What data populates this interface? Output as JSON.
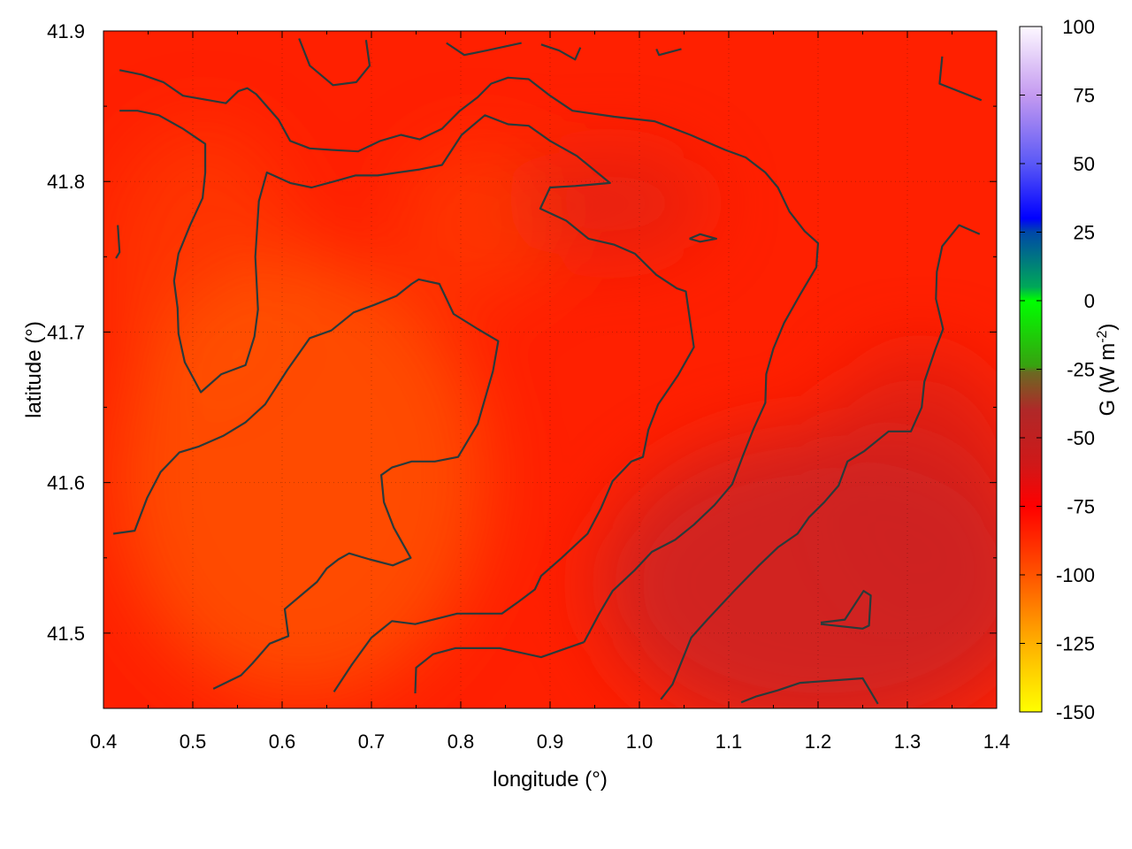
{
  "chart_data": {
    "type": "heatmap",
    "title": "",
    "xlabel": "longitude (°)",
    "ylabel": "latitude (°)",
    "xlim": [
      0.4,
      1.4
    ],
    "ylim": [
      41.45,
      41.9
    ],
    "xticks": [
      "0.4",
      "0.5",
      "0.6",
      "0.7",
      "0.8",
      "0.9",
      "1.0",
      "1.1",
      "1.2",
      "1.3",
      "1.4"
    ],
    "yticks": [
      "41.5",
      "41.6",
      "41.7",
      "41.8",
      "41.9"
    ],
    "grid": true,
    "colorbar": {
      "label": "G (W m",
      "label_sup": "-2",
      "label_close": ")",
      "range": [
        -150,
        100
      ],
      "ticks": [
        "100",
        "75",
        "50",
        "25",
        "0",
        "-25",
        "-50",
        "-75",
        "-100",
        "-125",
        "-150"
      ],
      "stops": [
        {
          "value": 100,
          "color": "#fdf8ff"
        },
        {
          "value": 75,
          "color": "#c49af0"
        },
        {
          "value": 50,
          "color": "#5a58f6"
        },
        {
          "value": 30,
          "color": "#0000ff"
        },
        {
          "value": 25,
          "color": "#0048a8"
        },
        {
          "value": 5,
          "color": "#00a858"
        },
        {
          "value": 0,
          "color": "#00ff00"
        },
        {
          "value": -24,
          "color": "#38a010"
        },
        {
          "value": -26,
          "color": "#6a6a22"
        },
        {
          "value": -40,
          "color": "#b02828"
        },
        {
          "value": -60,
          "color": "#d01818"
        },
        {
          "value": -75,
          "color": "#ff0000"
        },
        {
          "value": -100,
          "color": "#ff5400"
        },
        {
          "value": -125,
          "color": "#ffb000"
        },
        {
          "value": -150,
          "color": "#ffff00"
        }
      ]
    },
    "field_description_colors": {
      "typical": "#ff2000",
      "low_region": "#ff5a00",
      "high_region": "#cc2222"
    },
    "contour_color": "#2a3a3a",
    "contours": [
      [
        [
          0.418,
          41.874
        ],
        [
          0.443,
          41.871
        ],
        [
          0.467,
          41.866
        ],
        [
          0.489,
          41.857
        ],
        [
          0.537,
          41.852
        ],
        [
          0.551,
          41.86
        ],
        [
          0.561,
          41.862
        ],
        [
          0.571,
          41.858
        ],
        [
          0.596,
          41.841
        ],
        [
          0.609,
          41.827
        ],
        [
          0.631,
          41.822
        ],
        [
          0.655,
          41.821
        ],
        [
          0.685,
          41.82
        ],
        [
          0.71,
          41.827
        ],
        [
          0.733,
          41.831
        ],
        [
          0.754,
          41.828
        ],
        [
          0.779,
          41.835
        ],
        [
          0.799,
          41.847
        ],
        [
          0.819,
          41.856
        ],
        [
          0.834,
          41.865
        ],
        [
          0.853,
          41.869
        ],
        [
          0.876,
          41.868
        ],
        [
          0.9,
          41.857
        ],
        [
          0.925,
          41.847
        ],
        [
          0.972,
          41.843
        ],
        [
          1.017,
          41.84
        ],
        [
          1.057,
          41.831
        ],
        [
          1.096,
          41.821
        ],
        [
          1.119,
          41.816
        ],
        [
          1.141,
          41.806
        ],
        [
          1.155,
          41.796
        ],
        [
          1.168,
          41.78
        ],
        [
          1.185,
          41.767
        ],
        [
          1.2,
          41.759
        ],
        [
          1.198,
          41.743
        ],
        [
          1.18,
          41.725
        ],
        [
          1.162,
          41.706
        ],
        [
          1.15,
          41.689
        ],
        [
          1.142,
          41.672
        ],
        [
          1.141,
          41.653
        ],
        [
          1.128,
          41.636
        ],
        [
          1.116,
          41.618
        ],
        [
          1.104,
          41.599
        ],
        [
          1.084,
          41.585
        ],
        [
          1.061,
          41.572
        ],
        [
          1.04,
          41.562
        ],
        [
          1.014,
          41.554
        ],
        [
          0.995,
          41.542
        ],
        [
          0.97,
          41.528
        ],
        [
          0.955,
          41.513
        ],
        [
          0.938,
          41.494
        ]
      ],
      [
        [
          0.418,
          41.847
        ],
        [
          0.438,
          41.847
        ],
        [
          0.462,
          41.844
        ],
        [
          0.489,
          41.835
        ],
        [
          0.514,
          41.825
        ],
        [
          0.514,
          41.806
        ],
        [
          0.511,
          41.789
        ],
        [
          0.497,
          41.771
        ],
        [
          0.484,
          41.752
        ],
        [
          0.479,
          41.734
        ],
        [
          0.483,
          41.716
        ],
        [
          0.484,
          41.699
        ],
        [
          0.491,
          41.68
        ],
        [
          0.509,
          41.66
        ],
        [
          0.532,
          41.672
        ],
        [
          0.559,
          41.678
        ],
        [
          0.569,
          41.697
        ],
        [
          0.573,
          41.715
        ],
        [
          0.57,
          41.75
        ],
        [
          0.574,
          41.787
        ],
        [
          0.583,
          41.806
        ],
        [
          0.609,
          41.799
        ],
        [
          0.633,
          41.796
        ],
        [
          0.658,
          41.8
        ],
        [
          0.682,
          41.804
        ],
        [
          0.707,
          41.804
        ],
        [
          0.73,
          41.806
        ],
        [
          0.754,
          41.808
        ],
        [
          0.779,
          41.811
        ],
        [
          0.801,
          41.831
        ],
        [
          0.827,
          41.844
        ],
        [
          0.853,
          41.838
        ],
        [
          0.876,
          41.837
        ],
        [
          0.9,
          41.827
        ],
        [
          0.93,
          41.817
        ],
        [
          0.967,
          41.799
        ],
        [
          0.928,
          41.797
        ],
        [
          0.9,
          41.796
        ],
        [
          0.889,
          41.782
        ],
        [
          0.918,
          41.774
        ],
        [
          0.943,
          41.762
        ],
        [
          0.972,
          41.758
        ],
        [
          0.995,
          41.752
        ],
        [
          1.019,
          41.738
        ],
        [
          1.042,
          41.729
        ],
        [
          1.052,
          41.727
        ],
        [
          1.061,
          41.69
        ],
        [
          1.043,
          41.671
        ],
        [
          1.021,
          41.652
        ],
        [
          1.01,
          41.635
        ],
        [
          1.004,
          41.617
        ],
        [
          0.991,
          41.614
        ],
        [
          0.97,
          41.601
        ],
        [
          0.957,
          41.583
        ],
        [
          0.942,
          41.566
        ],
        [
          0.913,
          41.55
        ],
        [
          0.89,
          41.538
        ],
        [
          0.883,
          41.529
        ],
        [
          0.865,
          41.521
        ],
        [
          0.846,
          41.513
        ],
        [
          0.796,
          41.513
        ],
        [
          0.749,
          41.506
        ],
        [
          0.723,
          41.508
        ],
        [
          0.7,
          41.497
        ],
        [
          0.678,
          41.479
        ],
        [
          0.658,
          41.461
        ]
      ],
      [
        [
          0.411,
          41.566
        ],
        [
          0.435,
          41.568
        ],
        [
          0.449,
          41.59
        ],
        [
          0.464,
          41.607
        ],
        [
          0.485,
          41.62
        ],
        [
          0.507,
          41.624
        ],
        [
          0.534,
          41.631
        ],
        [
          0.559,
          41.64
        ],
        [
          0.581,
          41.652
        ],
        [
          0.606,
          41.675
        ],
        [
          0.631,
          41.696
        ],
        [
          0.655,
          41.701
        ],
        [
          0.68,
          41.713
        ],
        [
          0.703,
          41.718
        ],
        [
          0.728,
          41.724
        ],
        [
          0.745,
          41.732
        ],
        [
          0.753,
          41.735
        ],
        [
          0.776,
          41.732
        ],
        [
          0.792,
          41.712
        ],
        [
          0.819,
          41.702
        ],
        [
          0.842,
          41.694
        ],
        [
          0.836,
          41.674
        ],
        [
          0.819,
          41.639
        ],
        [
          0.797,
          41.617
        ],
        [
          0.771,
          41.614
        ],
        [
          0.745,
          41.614
        ],
        [
          0.723,
          41.61
        ],
        [
          0.711,
          41.605
        ],
        [
          0.714,
          41.587
        ],
        [
          0.725,
          41.57
        ],
        [
          0.744,
          41.55
        ],
        [
          0.724,
          41.545
        ],
        [
          0.698,
          41.549
        ],
        [
          0.675,
          41.553
        ],
        [
          0.663,
          41.549
        ],
        [
          0.65,
          41.543
        ],
        [
          0.639,
          41.534
        ],
        [
          0.623,
          41.526
        ],
        [
          0.603,
          41.516
        ],
        [
          0.607,
          41.498
        ],
        [
          0.586,
          41.493
        ],
        [
          0.567,
          41.48
        ],
        [
          0.554,
          41.472
        ],
        [
          0.523,
          41.463
        ]
      ],
      [
        [
          0.749,
          41.46
        ],
        [
          0.75,
          41.477
        ],
        [
          0.769,
          41.486
        ],
        [
          0.794,
          41.49
        ],
        [
          0.844,
          41.49
        ],
        [
          0.89,
          41.484
        ],
        [
          0.914,
          41.489
        ],
        [
          0.938,
          41.494
        ]
      ],
      [
        [
          1.024,
          41.456
        ],
        [
          1.037,
          41.466
        ],
        [
          1.058,
          41.497
        ],
        [
          1.076,
          41.509
        ],
        [
          1.106,
          41.528
        ],
        [
          1.134,
          41.545
        ],
        [
          1.155,
          41.557
        ],
        [
          1.177,
          41.566
        ],
        [
          1.19,
          41.577
        ],
        [
          1.207,
          41.587
        ],
        [
          1.223,
          41.598
        ],
        [
          1.233,
          41.614
        ],
        [
          1.252,
          41.621
        ],
        [
          1.279,
          41.634
        ],
        [
          1.304,
          41.634
        ],
        [
          1.316,
          41.65
        ],
        [
          1.319,
          41.667
        ],
        [
          1.331,
          41.688
        ],
        [
          1.34,
          41.702
        ],
        [
          1.332,
          41.722
        ],
        [
          1.333,
          41.74
        ],
        [
          1.339,
          41.757
        ],
        [
          1.358,
          41.771
        ],
        [
          1.381,
          41.765
        ]
      ],
      [
        [
          1.114,
          41.454
        ],
        [
          1.131,
          41.458
        ],
        [
          1.155,
          41.462
        ],
        [
          1.18,
          41.467
        ],
        [
          1.25,
          41.47
        ],
        [
          1.267,
          41.453
        ]
      ],
      [
        [
          1.203,
          41.507
        ],
        [
          1.23,
          41.509
        ],
        [
          1.251,
          41.528
        ],
        [
          1.259,
          41.525
        ],
        [
          1.257,
          41.505
        ],
        [
          1.25,
          41.503
        ],
        [
          1.203,
          41.506
        ]
      ],
      [
        [
          1.056,
          41.762
        ],
        [
          1.068,
          41.765
        ],
        [
          1.086,
          41.762
        ],
        [
          1.068,
          41.76
        ],
        [
          1.056,
          41.762
        ]
      ],
      [
        [
          0.619,
          41.895
        ],
        [
          0.631,
          41.877
        ],
        [
          0.657,
          41.864
        ],
        [
          0.683,
          41.866
        ],
        [
          0.698,
          41.877
        ],
        [
          0.694,
          41.894
        ]
      ],
      [
        [
          0.784,
          41.892
        ],
        [
          0.804,
          41.884
        ],
        [
          0.829,
          41.887
        ],
        [
          0.868,
          41.892
        ]
      ],
      [
        [
          0.89,
          41.891
        ],
        [
          0.91,
          41.887
        ],
        [
          0.928,
          41.881
        ],
        [
          0.934,
          41.889
        ]
      ],
      [
        [
          1.019,
          41.888
        ],
        [
          1.022,
          41.884
        ],
        [
          1.047,
          41.888
        ]
      ],
      [
        [
          1.339,
          41.883
        ],
        [
          1.336,
          41.865
        ],
        [
          1.383,
          41.854
        ]
      ],
      [
        [
          0.416,
          41.771
        ],
        [
          0.418,
          41.753
        ],
        [
          0.414,
          41.749
        ]
      ]
    ]
  }
}
